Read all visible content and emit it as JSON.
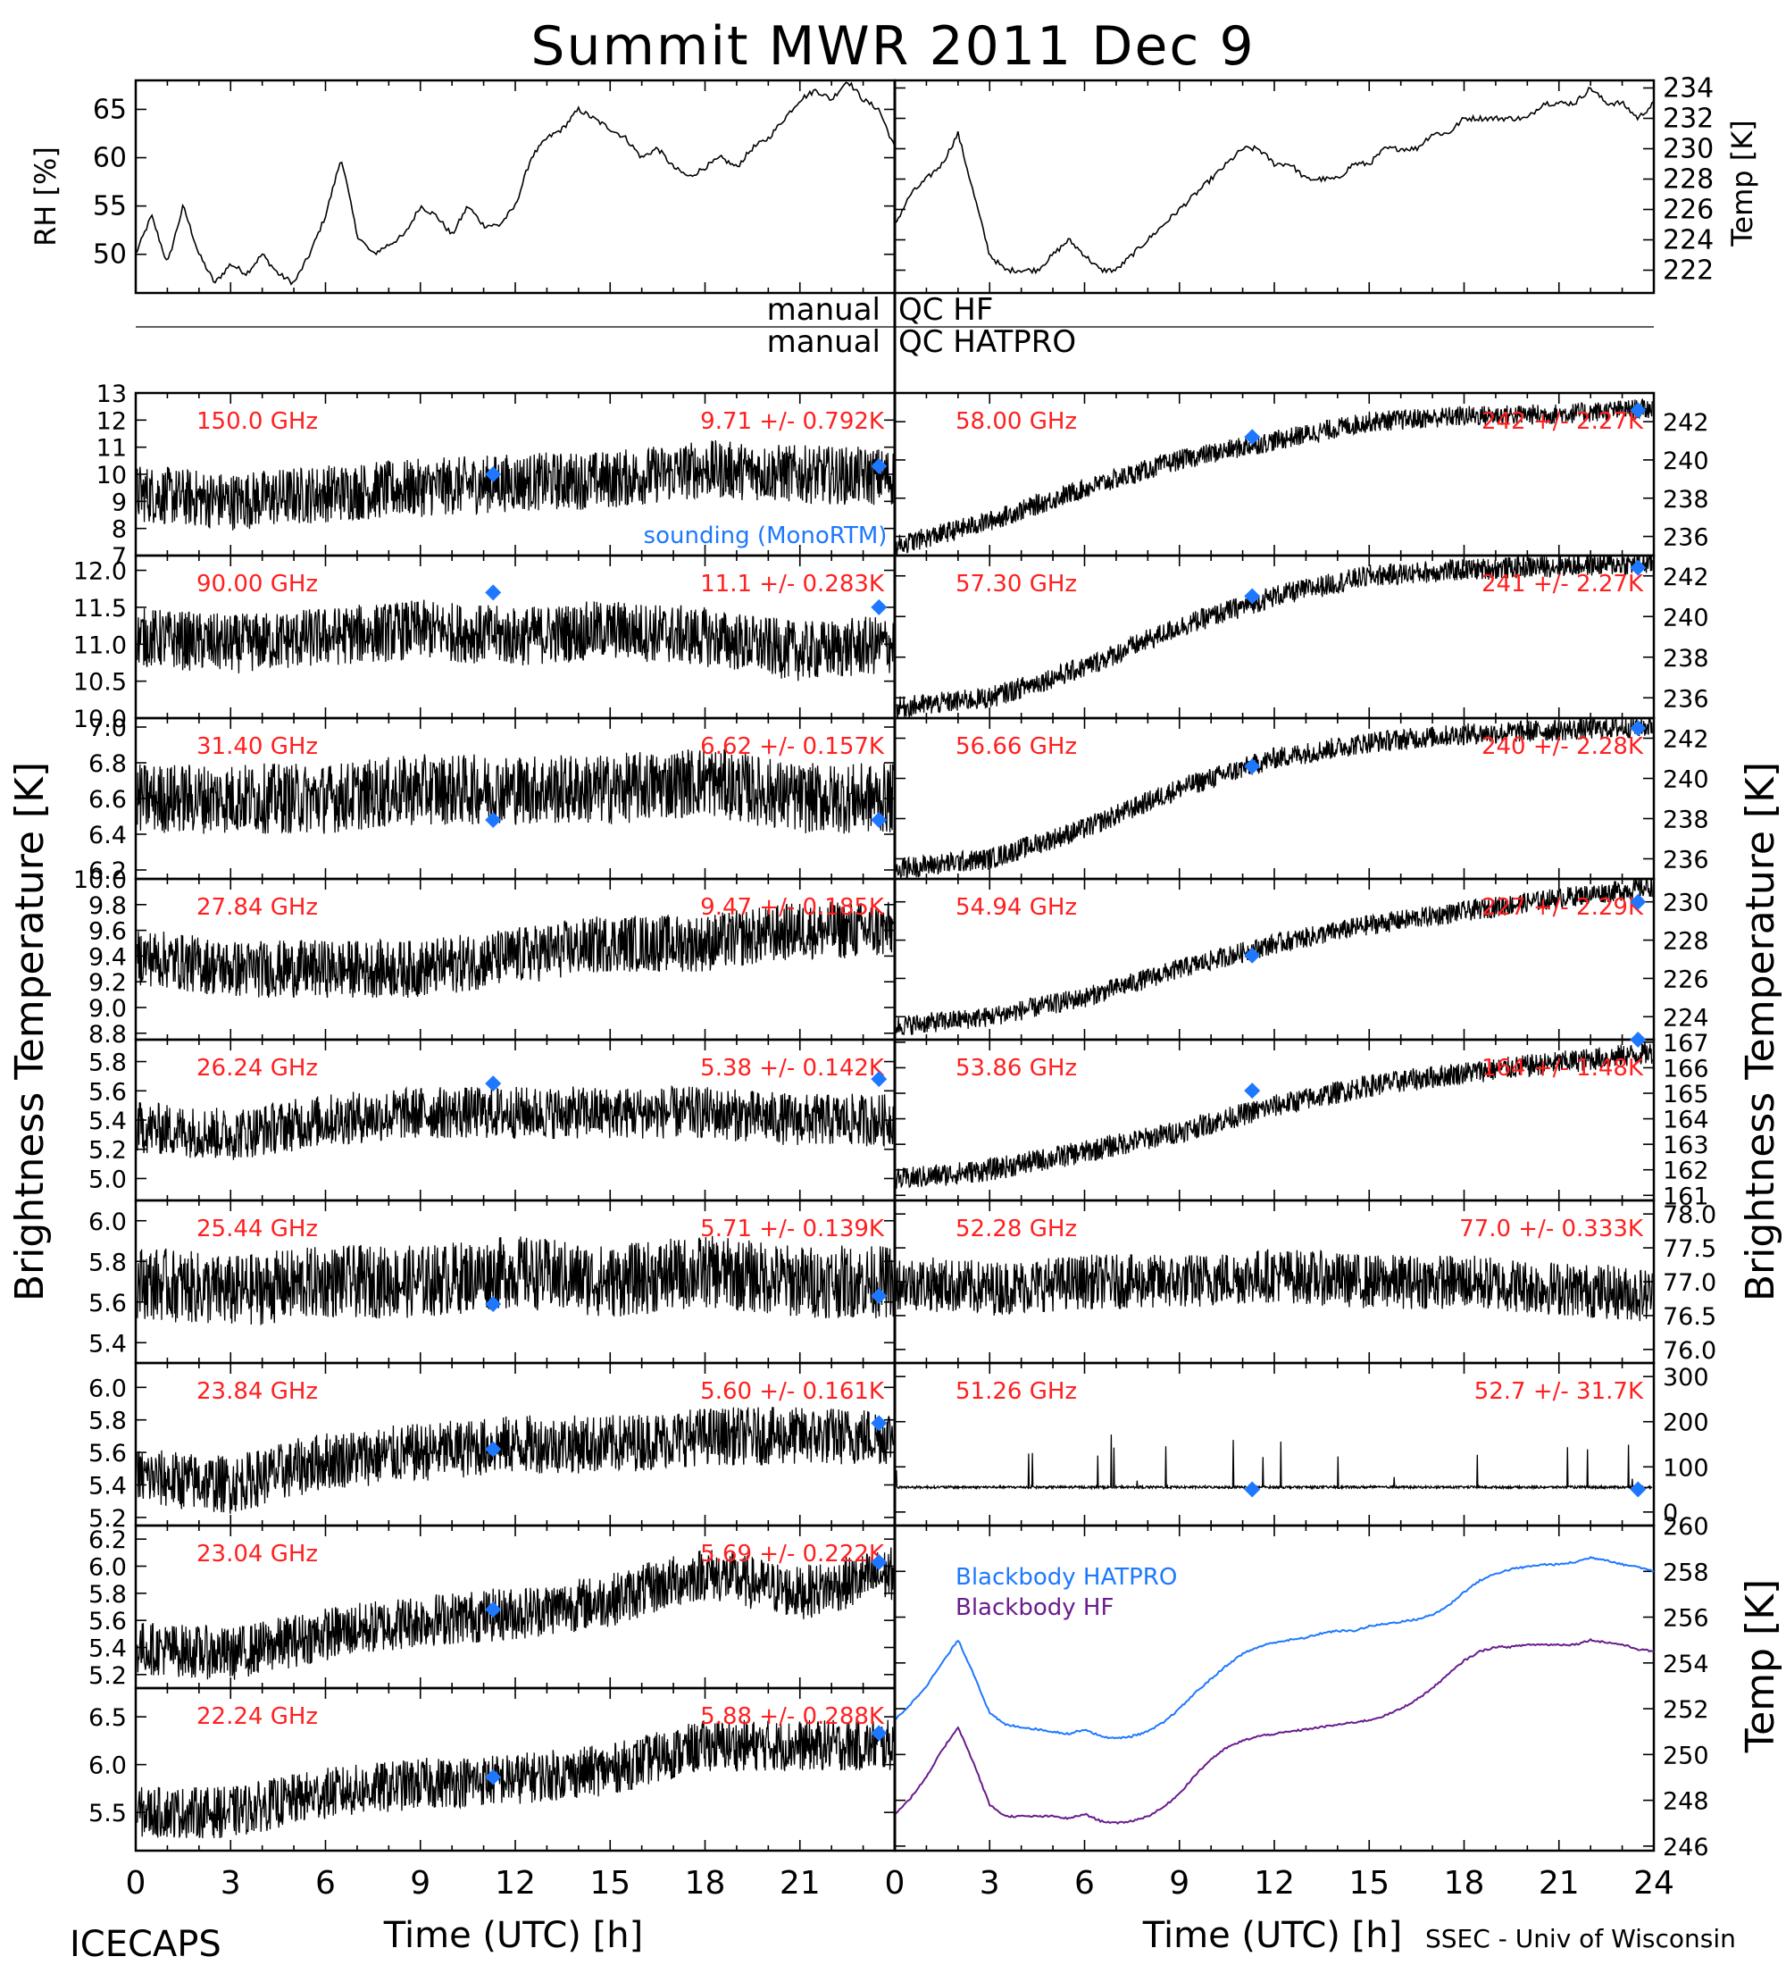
{
  "title": "Summit MWR 2011 Dec 9",
  "footer": {
    "left": "ICECAPS",
    "right": "SSEC - Univ of Wisconsin",
    "xlabel_left": "Time (UTC) [h]",
    "xlabel_right": "Time (UTC) [h]"
  },
  "qc": {
    "label_manual": "manual",
    "hf": "QC HF",
    "hatpro": "QC HATPRO"
  },
  "y_labels": {
    "rh": "RH [%]",
    "temp_top": "Temp [K]",
    "bt_left": "Brightness Temperature [K]",
    "bt_right": "Brightness Temperature [K]",
    "temp_bottom": "Temp [K]"
  },
  "colors": {
    "stats": "#ff2020",
    "sounding": "#1e78ff",
    "hatpro": "#1e78ff",
    "hf": "#6a1c8c"
  },
  "chart_data": [
    {
      "type": "line",
      "name": "RH",
      "ylabel": "RH [%]",
      "xlim": [
        0,
        24
      ],
      "ylim": [
        46,
        68
      ],
      "yticks": [
        50,
        55,
        60,
        65
      ],
      "x": [
        0,
        0.5,
        1,
        1.5,
        2,
        2.5,
        3,
        3.5,
        4,
        4.5,
        5,
        5.5,
        6,
        6.5,
        7,
        7.5,
        8,
        8.5,
        9,
        9.5,
        10,
        10.5,
        11,
        11.5,
        12,
        12.5,
        13,
        13.5,
        14,
        14.5,
        15,
        15.5,
        16,
        16.5,
        17,
        17.5,
        18,
        18.5,
        19,
        19.5,
        20,
        20.5,
        21,
        21.5,
        22,
        22.5,
        23,
        23.5,
        24
      ],
      "y": [
        50,
        54,
        49,
        55,
        50,
        47,
        49,
        48,
        50,
        48,
        47,
        50,
        54,
        60,
        52,
        50,
        51,
        52,
        55,
        54,
        52,
        55,
        53,
        53,
        55,
        60,
        62,
        63,
        65,
        64,
        63,
        62,
        60,
        61,
        59,
        58,
        59,
        60,
        59,
        61,
        62,
        64,
        66,
        67,
        66,
        68,
        66,
        65,
        61
      ]
    },
    {
      "type": "line",
      "name": "Temp",
      "ylabel": "Temp [K]",
      "xlim": [
        0,
        24
      ],
      "ylim": [
        220.5,
        234.5
      ],
      "yticks": [
        222,
        224,
        226,
        228,
        230,
        232,
        234
      ],
      "x": [
        0,
        0.5,
        1,
        1.5,
        2,
        2.5,
        3,
        3.5,
        4,
        4.5,
        5,
        5.5,
        6,
        6.5,
        7,
        7.5,
        8,
        8.5,
        9,
        9.5,
        10,
        10.5,
        11,
        11.5,
        12,
        12.5,
        13,
        13.5,
        14,
        14.5,
        15,
        15.5,
        16,
        16.5,
        17,
        17.5,
        18,
        18.5,
        19,
        19.5,
        20,
        20.5,
        21,
        21.5,
        22,
        22.5,
        23,
        23.5,
        24
      ],
      "y": [
        225,
        227,
        228,
        229,
        231,
        227,
        223,
        222,
        222,
        222,
        223,
        224,
        223,
        222,
        222,
        223,
        224,
        225,
        226,
        227,
        228,
        229,
        230,
        230,
        229,
        229,
        228,
        228,
        228,
        229,
        229,
        230,
        230,
        230,
        231,
        231,
        232,
        232,
        232,
        232,
        232,
        233,
        233,
        233,
        234,
        233,
        233,
        232,
        233
      ]
    },
    {
      "type": "scatter",
      "name": "150.0 GHz",
      "freq": "150.0 GHz",
      "stat": "9.71 +/- 0.792K",
      "ylim": [
        7,
        13
      ],
      "yticks": [
        7,
        8,
        9,
        10,
        11,
        12,
        13
      ],
      "x": [
        0,
        3,
        6,
        9,
        12,
        15,
        18,
        21,
        24
      ],
      "y": [
        9.3,
        9.0,
        9.3,
        9.5,
        9.7,
        9.8,
        10.2,
        10.0,
        9.9
      ],
      "noise": 1.2,
      "sounding": [
        [
          11.3,
          10.0
        ],
        [
          23.5,
          10.3
        ]
      ],
      "note": "sounding (MonoRTM)"
    },
    {
      "type": "scatter",
      "name": "90.00 GHz",
      "freq": "90.00 GHz",
      "stat": "11.1 +/- 0.283K",
      "ylim": [
        10.0,
        12.2
      ],
      "yticks": [
        10.0,
        10.5,
        11.0,
        11.5,
        12.0
      ],
      "x": [
        0,
        3,
        6,
        9,
        12,
        15,
        18,
        21,
        24
      ],
      "y": [
        11.1,
        11.0,
        11.1,
        11.2,
        11.1,
        11.2,
        11.1,
        10.9,
        11.0
      ],
      "noise": 0.45,
      "sounding": [
        [
          11.3,
          11.7
        ],
        [
          23.5,
          11.5
        ]
      ]
    },
    {
      "type": "scatter",
      "name": "31.40 GHz",
      "freq": "31.40 GHz",
      "stat": "6.62 +/- 0.157K",
      "ylim": [
        6.15,
        7.05
      ],
      "yticks": [
        6.2,
        6.4,
        6.6,
        6.8,
        7.0
      ],
      "x": [
        0,
        3,
        6,
        9,
        12,
        15,
        18,
        21,
        24
      ],
      "y": [
        6.6,
        6.6,
        6.6,
        6.65,
        6.65,
        6.65,
        6.7,
        6.6,
        6.6
      ],
      "noise": 0.22,
      "sounding": [
        [
          11.3,
          6.48
        ],
        [
          23.5,
          6.48
        ]
      ]
    },
    {
      "type": "scatter",
      "name": "27.84 GHz",
      "freq": "27.84 GHz",
      "stat": "9.47 +/- 0.185K",
      "ylim": [
        8.75,
        10.0
      ],
      "yticks": [
        8.8,
        9.0,
        9.2,
        9.4,
        9.6,
        9.8,
        10.0
      ],
      "x": [
        0,
        3,
        6,
        9,
        12,
        15,
        18,
        21,
        24
      ],
      "y": [
        9.4,
        9.3,
        9.3,
        9.3,
        9.4,
        9.5,
        9.5,
        9.6,
        9.6
      ],
      "noise": 0.25,
      "sounding": []
    },
    {
      "type": "scatter",
      "name": "26.24 GHz",
      "freq": "26.24 GHz",
      "stat": "5.38 +/- 0.142K",
      "ylim": [
        4.85,
        5.95
      ],
      "yticks": [
        5.0,
        5.2,
        5.4,
        5.6,
        5.8
      ],
      "x": [
        0,
        3,
        6,
        9,
        12,
        15,
        18,
        21,
        24
      ],
      "y": [
        5.35,
        5.3,
        5.4,
        5.45,
        5.45,
        5.45,
        5.45,
        5.4,
        5.4
      ],
      "noise": 0.2,
      "sounding": [
        [
          11.3,
          5.65
        ],
        [
          23.5,
          5.68
        ]
      ]
    },
    {
      "type": "scatter",
      "name": "25.44 GHz",
      "freq": "25.44 GHz",
      "stat": "5.71 +/- 0.139K",
      "ylim": [
        5.3,
        6.1
      ],
      "yticks": [
        5.4,
        5.6,
        5.8,
        6.0
      ],
      "x": [
        0,
        3,
        6,
        9,
        12,
        15,
        18,
        21,
        24
      ],
      "y": [
        5.7,
        5.65,
        5.7,
        5.7,
        5.75,
        5.7,
        5.75,
        5.7,
        5.7
      ],
      "noise": 0.2,
      "sounding": [
        [
          11.3,
          5.59
        ],
        [
          23.5,
          5.63
        ]
      ]
    },
    {
      "type": "scatter",
      "name": "23.84 GHz",
      "freq": "23.84 GHz",
      "stat": "5.60 +/- 0.161K",
      "ylim": [
        5.15,
        6.15
      ],
      "yticks": [
        5.2,
        5.4,
        5.6,
        5.8,
        6.0
      ],
      "x": [
        0,
        3,
        6,
        9,
        12,
        15,
        18,
        21,
        24
      ],
      "y": [
        5.45,
        5.4,
        5.55,
        5.6,
        5.65,
        5.65,
        5.7,
        5.7,
        5.7
      ],
      "noise": 0.2,
      "sounding": [
        [
          11.3,
          5.62
        ],
        [
          23.5,
          5.78
        ]
      ]
    },
    {
      "type": "scatter",
      "name": "23.04 GHz",
      "freq": "23.04 GHz",
      "stat": "5.69 +/- 0.222K",
      "ylim": [
        5.1,
        6.3
      ],
      "yticks": [
        5.2,
        5.4,
        5.6,
        5.8,
        6.0,
        6.2
      ],
      "x": [
        0,
        3,
        6,
        9,
        12,
        15,
        18,
        21,
        24
      ],
      "y": [
        5.4,
        5.35,
        5.5,
        5.6,
        5.65,
        5.75,
        5.95,
        5.8,
        5.95
      ],
      "noise": 0.22,
      "sounding": [
        [
          11.3,
          5.68
        ],
        [
          23.5,
          6.03
        ]
      ]
    },
    {
      "type": "scatter",
      "name": "22.24 GHz",
      "freq": "22.24 GHz",
      "stat": "5.88 +/- 0.288K",
      "ylim": [
        5.1,
        6.8
      ],
      "yticks": [
        5.5,
        6.0,
        6.5
      ],
      "x": [
        0,
        3,
        6,
        9,
        12,
        15,
        18,
        21,
        24
      ],
      "y": [
        5.5,
        5.5,
        5.7,
        5.8,
        5.85,
        5.95,
        6.2,
        6.2,
        6.2
      ],
      "noise": 0.3,
      "sounding": [
        [
          11.3,
          5.87
        ],
        [
          23.5,
          6.33
        ]
      ]
    },
    {
      "type": "scatter",
      "name": "58.00 GHz",
      "freq": "58.00 GHz",
      "stat": "242 +/- 2.27K",
      "ylim": [
        235,
        243.5
      ],
      "yticks": [
        236,
        238,
        240,
        242
      ],
      "x": [
        0,
        3,
        6,
        9,
        12,
        15,
        18,
        21,
        24
      ],
      "y": [
        235.5,
        236.8,
        238.5,
        240,
        241,
        242,
        242.3,
        242.4,
        242.7
      ],
      "noise": 0.6,
      "sounding": [
        [
          11.3,
          241.2
        ],
        [
          23.5,
          242.6
        ]
      ]
    },
    {
      "type": "scatter",
      "name": "57.30 GHz",
      "freq": "57.30 GHz",
      "stat": "241 +/- 2.27K",
      "ylim": [
        235,
        243
      ],
      "yticks": [
        236,
        238,
        240,
        242
      ],
      "x": [
        0,
        3,
        6,
        9,
        12,
        15,
        18,
        21,
        24
      ],
      "y": [
        235.5,
        236,
        237.5,
        239.5,
        241,
        242,
        242.3,
        242.5,
        242.6
      ],
      "noise": 0.6,
      "sounding": [
        [
          11.3,
          241
        ],
        [
          23.5,
          242.4
        ]
      ]
    },
    {
      "type": "scatter",
      "name": "56.66 GHz",
      "freq": "56.66 GHz",
      "stat": "240 +/- 2.28K",
      "ylim": [
        235,
        243
      ],
      "yticks": [
        236,
        238,
        240,
        242
      ],
      "x": [
        0,
        3,
        6,
        9,
        12,
        15,
        18,
        21,
        24
      ],
      "y": [
        235.5,
        236,
        237.5,
        239.5,
        241,
        241.8,
        242.2,
        242.4,
        242.6
      ],
      "noise": 0.6,
      "sounding": [
        [
          11.3,
          240.6
        ],
        [
          23.5,
          242.5
        ]
      ]
    },
    {
      "type": "scatter",
      "name": "54.94 GHz",
      "freq": "54.94 GHz",
      "stat": "227 +/- 2.29K",
      "ylim": [
        222.8,
        231.2
      ],
      "yticks": [
        224,
        226,
        228,
        230
      ],
      "x": [
        0,
        3,
        6,
        9,
        12,
        15,
        18,
        21,
        24
      ],
      "y": [
        223.5,
        224,
        225,
        226.5,
        227.8,
        228.8,
        229.5,
        230.2,
        230.8
      ],
      "noise": 0.6,
      "sounding": [
        [
          11.3,
          227.2
        ],
        [
          23.5,
          230.0
        ]
      ]
    },
    {
      "type": "scatter",
      "name": "53.86 GHz",
      "freq": "53.86 GHz",
      "stat": "164 +/- 1.48K",
      "ylim": [
        160.8,
        167.1
      ],
      "yticks": [
        161,
        162,
        163,
        164,
        165,
        166,
        167
      ],
      "x": [
        0,
        3,
        6,
        9,
        12,
        15,
        18,
        21,
        24
      ],
      "y": [
        161.6,
        162,
        162.7,
        163.5,
        164.5,
        165.3,
        165.8,
        166.2,
        166.6
      ],
      "noise": 0.5,
      "sounding": [
        [
          11.3,
          165.1
        ],
        [
          23.5,
          167.1
        ]
      ]
    },
    {
      "type": "scatter",
      "name": "52.28 GHz",
      "freq": "52.28 GHz",
      "stat": "77.0 +/- 0.333K",
      "ylim": [
        75.8,
        78.2
      ],
      "yticks": [
        76.0,
        76.5,
        77.0,
        77.5,
        78.0
      ],
      "x": [
        0,
        3,
        6,
        9,
        12,
        15,
        18,
        21,
        24
      ],
      "y": [
        77.0,
        76.9,
        77.0,
        77.0,
        77.1,
        77.0,
        77.0,
        76.9,
        76.8
      ],
      "noise": 0.45,
      "sounding": []
    },
    {
      "type": "scatter",
      "name": "51.26 GHz",
      "freq": "51.26 GHz",
      "stat": "52.7 +/- 31.7K",
      "ylim": [
        -30,
        330
      ],
      "yticks": [
        0,
        100,
        200,
        300
      ],
      "x": [
        0,
        3,
        6,
        9,
        12,
        15,
        18,
        21,
        24
      ],
      "y": [
        55,
        55,
        55,
        55,
        55,
        55,
        55,
        55,
        55
      ],
      "noise": 3,
      "sounding": [
        [
          11.3,
          50
        ],
        [
          23.5,
          50
        ]
      ]
    },
    {
      "type": "line",
      "name": "Blackbody",
      "ylabel": "Temp [K]",
      "xlim": [
        0,
        24
      ],
      "ylim": [
        245.8,
        260
      ],
      "yticks": [
        246,
        248,
        250,
        252,
        254,
        256,
        258,
        260
      ],
      "series": [
        {
          "name": "Blackbody HATPRO",
          "x": [
            0,
            0.5,
            1,
            1.5,
            2,
            2.5,
            3,
            3.5,
            4,
            4.5,
            5,
            5.5,
            6,
            6.5,
            7,
            7.5,
            8,
            8.5,
            9,
            9.5,
            10,
            10.5,
            11,
            11.5,
            12,
            12.5,
            13,
            13.5,
            14,
            14.5,
            15,
            15.5,
            16,
            16.5,
            17,
            17.5,
            18,
            18.5,
            19,
            19.5,
            20,
            20.5,
            21,
            21.5,
            22,
            22.5,
            23,
            23.5,
            24
          ],
          "y": [
            251.5,
            252.2,
            253,
            254,
            255,
            253.5,
            251.8,
            251.3,
            251.2,
            251.1,
            251,
            250.9,
            251.1,
            250.8,
            250.7,
            250.8,
            251,
            251.4,
            252,
            252.7,
            253.3,
            253.9,
            254.4,
            254.7,
            254.9,
            255,
            255.1,
            255.3,
            255.4,
            255.4,
            255.6,
            255.7,
            255.8,
            255.9,
            256.1,
            256.5,
            257.1,
            257.6,
            257.9,
            258.1,
            258.2,
            258.3,
            258.3,
            258.4,
            258.6,
            258.5,
            258.3,
            258.2,
            258.0
          ]
        },
        {
          "name": "Blackbody HF",
          "x": [
            0,
            0.5,
            1,
            1.5,
            2,
            2.5,
            3,
            3.5,
            4,
            4.5,
            5,
            5.5,
            6,
            6.5,
            7,
            7.5,
            8,
            8.5,
            9,
            9.5,
            10,
            10.5,
            11,
            11.5,
            12,
            12.5,
            13,
            13.5,
            14,
            14.5,
            15,
            15.5,
            16,
            16.5,
            17,
            17.5,
            18,
            18.5,
            19,
            19.5,
            20,
            20.5,
            21,
            21.5,
            22,
            22.5,
            23,
            23.5,
            24
          ],
          "y": [
            247.4,
            248.1,
            249,
            250.2,
            251.2,
            249.6,
            247.8,
            247.3,
            247.3,
            247.3,
            247.3,
            247.2,
            247.4,
            247.1,
            247,
            247.1,
            247.3,
            247.7,
            248.3,
            249.1,
            249.8,
            250.3,
            250.6,
            250.8,
            250.9,
            251,
            251.1,
            251.2,
            251.3,
            251.4,
            251.5,
            251.7,
            252,
            252.4,
            252.9,
            253.5,
            254.1,
            254.5,
            254.7,
            254.7,
            254.8,
            254.8,
            254.8,
            254.8,
            255,
            254.9,
            254.8,
            254.6,
            254.5
          ]
        }
      ]
    }
  ]
}
